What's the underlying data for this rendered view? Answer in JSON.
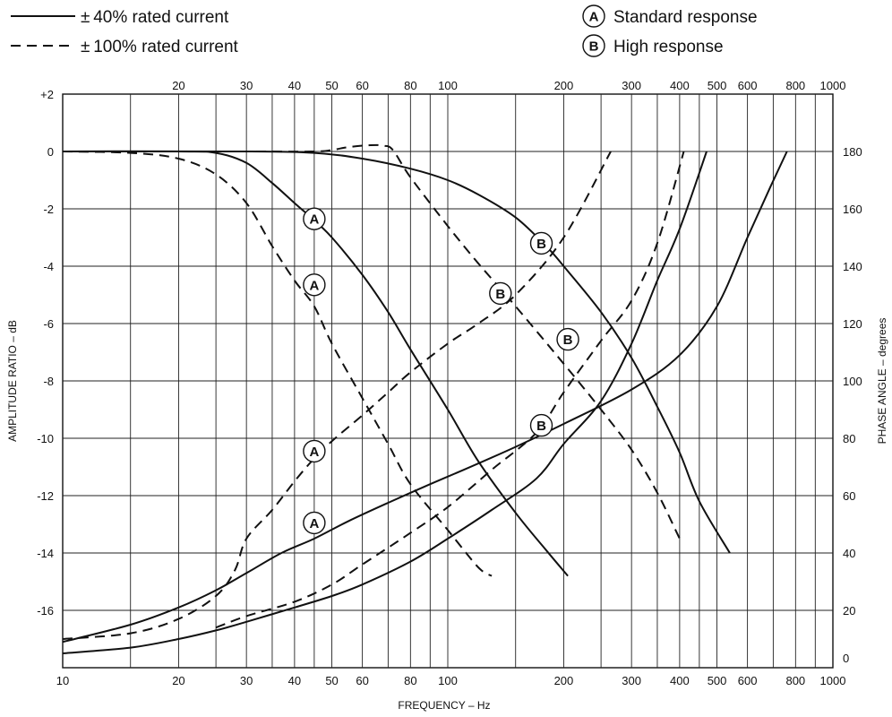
{
  "chart_data": {
    "type": "line",
    "x_scale": "log",
    "xlim": [
      10,
      1000
    ],
    "ylim": [
      -18,
      2
    ],
    "y2lim": [
      0,
      180
    ],
    "grid": true,
    "legend_placement": "top",
    "xlabel": "FREQUENCY – Hz",
    "ylabel": "AMPLITUDE RATIO – dB",
    "y2label": "PHASE ANGLE – degrees",
    "x_ticks_bottom": [
      "10",
      "20",
      "30",
      "40",
      "50",
      "60",
      "80",
      "100",
      "200",
      "300",
      "400",
      "500",
      "600",
      "800",
      "1000"
    ],
    "x_ticks_top": [
      "20",
      "30",
      "40",
      "50",
      "60",
      "80",
      "100",
      "200",
      "300",
      "400",
      "500",
      "600",
      "800",
      "1000"
    ],
    "y_ticks": [
      "+2",
      "0",
      "-2",
      "-4",
      "-6",
      "-8",
      "-10",
      "-12",
      "-14",
      "-16"
    ],
    "y2_ticks": [
      "0",
      "20",
      "40",
      "60",
      "80",
      "100",
      "120",
      "140",
      "160",
      "180"
    ],
    "legend": {
      "linestyles": [
        {
          "style": "solid",
          "prefix": "±",
          "label": "40% rated current"
        },
        {
          "style": "dashed",
          "prefix": "±",
          "label": "100% rated current"
        }
      ],
      "responses": [
        {
          "marker": "A",
          "label": "Standard response"
        },
        {
          "marker": "B",
          "label": "High response"
        }
      ]
    },
    "series": [
      {
        "response": "A",
        "current": "40%",
        "style": "solid",
        "axis": "amplitude",
        "points": [
          [
            10,
            0
          ],
          [
            20,
            0
          ],
          [
            25,
            -0.05
          ],
          [
            30,
            -0.4
          ],
          [
            35,
            -1.1
          ],
          [
            40,
            -1.8
          ],
          [
            45,
            -2.4
          ],
          [
            50,
            -3.0
          ],
          [
            60,
            -4.3
          ],
          [
            70,
            -5.6
          ],
          [
            80,
            -6.9
          ],
          [
            100,
            -9.0
          ],
          [
            120,
            -10.8
          ],
          [
            150,
            -12.6
          ],
          [
            180,
            -13.9
          ],
          [
            205,
            -14.8
          ]
        ]
      },
      {
        "response": "A",
        "current": "100%",
        "style": "dashed",
        "axis": "amplitude",
        "points": [
          [
            10,
            0
          ],
          [
            15,
            -0.05
          ],
          [
            20,
            -0.25
          ],
          [
            25,
            -0.8
          ],
          [
            30,
            -1.8
          ],
          [
            35,
            -3.3
          ],
          [
            40,
            -4.5
          ],
          [
            45,
            -5.4
          ],
          [
            50,
            -6.7
          ],
          [
            60,
            -8.6
          ],
          [
            70,
            -10.2
          ],
          [
            80,
            -11.6
          ],
          [
            100,
            -13.2
          ],
          [
            120,
            -14.5
          ],
          [
            130,
            -14.8
          ]
        ]
      },
      {
        "response": "B",
        "current": "40%",
        "style": "solid",
        "axis": "amplitude",
        "points": [
          [
            10,
            0
          ],
          [
            30,
            0
          ],
          [
            45,
            -0.05
          ],
          [
            60,
            -0.25
          ],
          [
            80,
            -0.6
          ],
          [
            100,
            -1.0
          ],
          [
            120,
            -1.5
          ],
          [
            150,
            -2.3
          ],
          [
            180,
            -3.3
          ],
          [
            200,
            -4.0
          ],
          [
            250,
            -5.6
          ],
          [
            300,
            -7.2
          ],
          [
            350,
            -8.9
          ],
          [
            400,
            -10.5
          ],
          [
            450,
            -12.2
          ],
          [
            540,
            -14.0
          ]
        ]
      },
      {
        "response": "B",
        "current": "100%",
        "style": "dashed",
        "axis": "amplitude",
        "points": [
          [
            10,
            0
          ],
          [
            30,
            0
          ],
          [
            45,
            0
          ],
          [
            50,
            0.05
          ],
          [
            55,
            0.15
          ],
          [
            63,
            0.22
          ],
          [
            68,
            0.2
          ],
          [
            72,
            0.05
          ],
          [
            80,
            -0.9
          ],
          [
            100,
            -2.6
          ],
          [
            120,
            -3.9
          ],
          [
            150,
            -5.4
          ],
          [
            200,
            -7.4
          ],
          [
            250,
            -9.0
          ],
          [
            300,
            -10.4
          ],
          [
            350,
            -11.9
          ],
          [
            400,
            -13.5
          ]
        ]
      },
      {
        "response": "A",
        "current": "40%",
        "style": "solid",
        "axis": "phase",
        "points": [
          [
            10,
            9
          ],
          [
            15,
            15
          ],
          [
            20,
            21
          ],
          [
            25,
            27
          ],
          [
            30,
            33
          ],
          [
            37,
            40
          ],
          [
            45,
            45
          ],
          [
            55,
            51
          ],
          [
            70,
            57.5
          ],
          [
            90,
            64
          ],
          [
            110,
            69
          ],
          [
            150,
            77
          ],
          [
            200,
            85
          ],
          [
            300,
            97
          ],
          [
            400,
            109
          ],
          [
            500,
            126
          ],
          [
            600,
            150
          ],
          [
            690,
            168
          ],
          [
            760,
            180
          ]
        ]
      },
      {
        "response": "A",
        "current": "100%",
        "style": "dashed",
        "axis": "phase",
        "points": [
          [
            10,
            10
          ],
          [
            15,
            12
          ],
          [
            20,
            17
          ],
          [
            25,
            25
          ],
          [
            28,
            34
          ],
          [
            30,
            45
          ],
          [
            35,
            55
          ],
          [
            40,
            65
          ],
          [
            45,
            73
          ],
          [
            50,
            79
          ],
          [
            60,
            88
          ],
          [
            70,
            96
          ],
          [
            80,
            103
          ],
          [
            100,
            113
          ],
          [
            120,
            120
          ],
          [
            150,
            130
          ],
          [
            200,
            150
          ],
          [
            265,
            180
          ]
        ]
      },
      {
        "response": "B",
        "current": "40%",
        "style": "solid",
        "axis": "phase",
        "points": [
          [
            10,
            5
          ],
          [
            15,
            7
          ],
          [
            20,
            10
          ],
          [
            25,
            13
          ],
          [
            30,
            16
          ],
          [
            40,
            21
          ],
          [
            50,
            25
          ],
          [
            60,
            29
          ],
          [
            80,
            37
          ],
          [
            100,
            45
          ],
          [
            130,
            55
          ],
          [
            170,
            66
          ],
          [
            200,
            78
          ],
          [
            250,
            93
          ],
          [
            300,
            113
          ],
          [
            350,
            135
          ],
          [
            400,
            153
          ],
          [
            470,
            180
          ]
        ]
      },
      {
        "response": "B",
        "current": "100%",
        "style": "dashed",
        "axis": "phase",
        "points": [
          [
            25,
            14
          ],
          [
            30,
            18
          ],
          [
            40,
            23
          ],
          [
            50,
            29
          ],
          [
            60,
            36
          ],
          [
            80,
            47
          ],
          [
            100,
            56
          ],
          [
            130,
            69
          ],
          [
            170,
            82
          ],
          [
            200,
            96
          ],
          [
            250,
            114
          ],
          [
            300,
            128
          ],
          [
            350,
            148
          ],
          [
            410,
            180
          ]
        ]
      }
    ],
    "markers": [
      {
        "letter": "A",
        "x": 45,
        "y": -2.35
      },
      {
        "letter": "A",
        "x": 45,
        "y": -4.65
      },
      {
        "letter": "A",
        "x": 45,
        "y": -10.45
      },
      {
        "letter": "A",
        "x": 45,
        "y": -12.95
      },
      {
        "letter": "B",
        "x": 175,
        "y": -3.2
      },
      {
        "letter": "B",
        "x": 137,
        "y": -4.95
      },
      {
        "letter": "B",
        "x": 205,
        "y": -6.55
      },
      {
        "letter": "B",
        "x": 175,
        "y": -9.55
      }
    ]
  }
}
